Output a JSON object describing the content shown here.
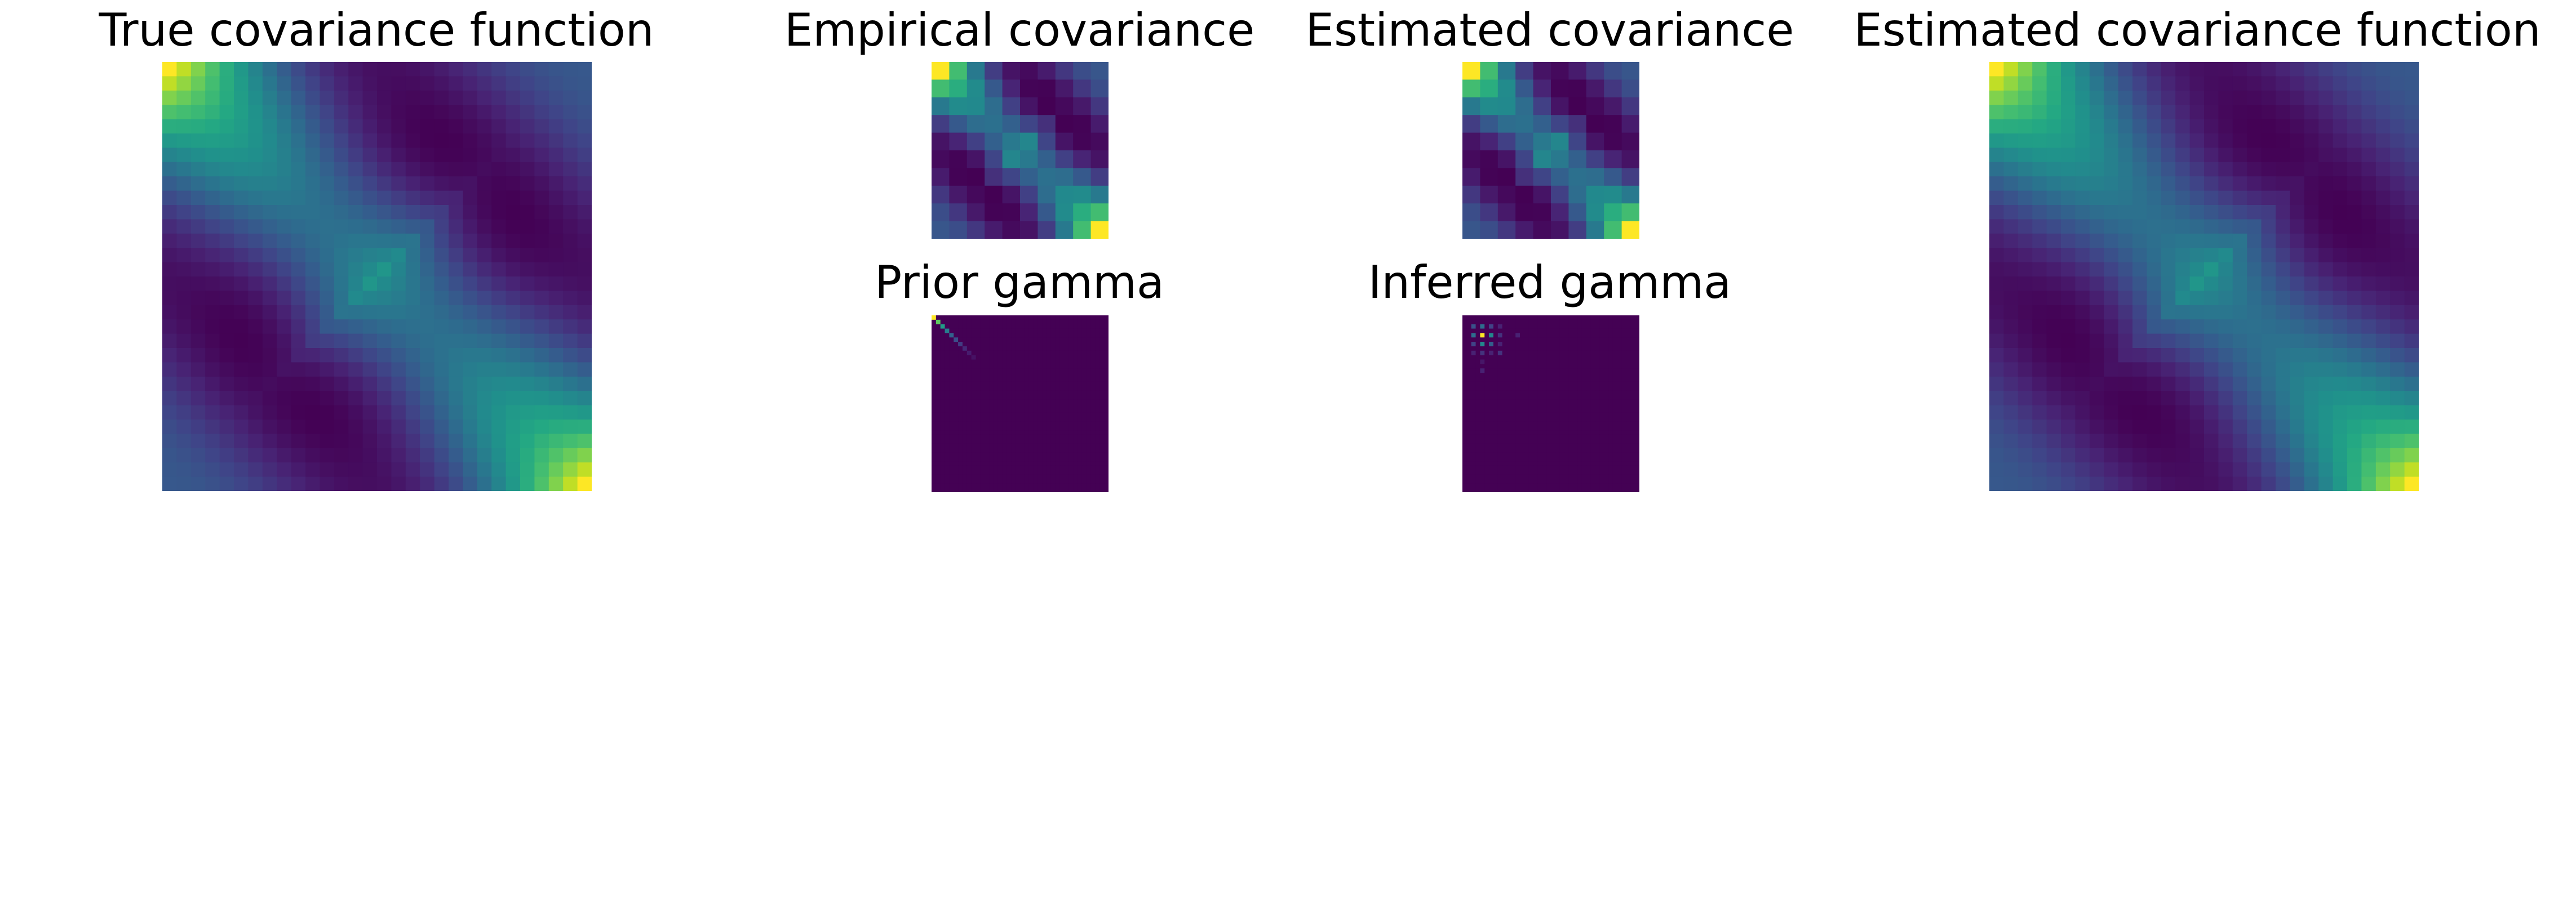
{
  "chart_data": [
    {
      "type": "heatmap",
      "title": "True covariance function",
      "axes": "off",
      "grid": false,
      "colormap": "viridis",
      "matrix_size": 30,
      "kernel": "periodic",
      "center_value": 0.3,
      "corner_value": 1.0,
      "min_value": -0.7
    },
    {
      "type": "heatmap",
      "title": "Empirical covariance",
      "axes": "off",
      "grid": false,
      "colormap": "viridis",
      "matrix_size": 10,
      "kernel": "periodic"
    },
    {
      "type": "heatmap",
      "title": "Estimated covariance",
      "axes": "off",
      "grid": false,
      "colormap": "viridis",
      "matrix_size": 10,
      "kernel": "periodic"
    },
    {
      "type": "heatmap",
      "title": "Estimated covariance function",
      "axes": "off",
      "grid": false,
      "colormap": "viridis",
      "matrix_size": 30,
      "kernel": "periodic"
    },
    {
      "type": "heatmap",
      "title": "Prior gamma",
      "axes": "off",
      "grid": false,
      "colormap": "viridis",
      "matrix_size": 40,
      "structure": "diagonal",
      "diagonal_values": [
        1.0,
        0.75,
        0.55,
        0.42,
        0.32,
        0.24,
        0.18,
        0.12,
        0.08,
        0.05
      ],
      "background_value": 0.0
    },
    {
      "type": "heatmap",
      "title": "Inferred gamma",
      "axes": "off",
      "grid": false,
      "colormap": "viridis",
      "matrix_size": 40,
      "structure": "sparse",
      "cells": [
        {
          "row": 2,
          "col": 2,
          "value": 0.3
        },
        {
          "row": 2,
          "col": 4,
          "value": 0.4
        },
        {
          "row": 2,
          "col": 6,
          "value": 0.25
        },
        {
          "row": 2,
          "col": 8,
          "value": 0.15
        },
        {
          "row": 4,
          "col": 2,
          "value": 0.4
        },
        {
          "row": 4,
          "col": 4,
          "value": 1.0
        },
        {
          "row": 4,
          "col": 6,
          "value": 0.5
        },
        {
          "row": 4,
          "col": 8,
          "value": 0.2
        },
        {
          "row": 4,
          "col": 12,
          "value": 0.15
        },
        {
          "row": 6,
          "col": 2,
          "value": 0.25
        },
        {
          "row": 6,
          "col": 4,
          "value": 0.5
        },
        {
          "row": 6,
          "col": 6,
          "value": 0.35
        },
        {
          "row": 6,
          "col": 8,
          "value": 0.15
        },
        {
          "row": 8,
          "col": 2,
          "value": 0.15
        },
        {
          "row": 8,
          "col": 4,
          "value": 0.2
        },
        {
          "row": 8,
          "col": 6,
          "value": 0.15
        },
        {
          "row": 8,
          "col": 8,
          "value": 0.2
        },
        {
          "row": 10,
          "col": 4,
          "value": 0.12
        },
        {
          "row": 12,
          "col": 4,
          "value": 0.15
        }
      ],
      "background_value": 0.06
    }
  ]
}
